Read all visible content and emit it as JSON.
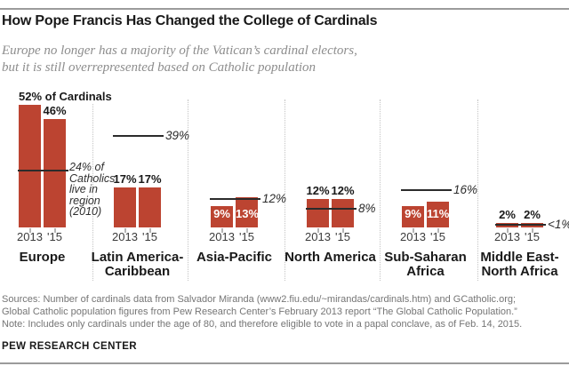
{
  "header": {
    "title": "How Pope Francis Has Changed the College of Cardinals",
    "subtitle_lines": [
      "Europe no longer has a majority of the Vatican’s cardinal electors,",
      "but it is still overrepresented based on Catholic population"
    ]
  },
  "chart_data": {
    "type": "bar",
    "title": "How Pope Francis Has Changed the College of Cardinals",
    "categories": [
      "2013",
      "'15"
    ],
    "ylim": [
      0,
      55
    ],
    "grid": false,
    "legend": "none",
    "colors": {
      "bar": "#bc4431",
      "reference_line": "#2b2b2b"
    },
    "series_note": "bars = % of cardinal electors; line = % of Catholics living in region (2010)",
    "regions": [
      {
        "name_lines": [
          "Europe"
        ],
        "values": [
          52,
          46
        ],
        "bar_labels": [
          "52% of Cardinals",
          "46%"
        ],
        "bar_label_style": "above",
        "first_label_wide": true,
        "population_pct": 24,
        "population_label_lines": [
          "24% of",
          "Catholics",
          "live in",
          "region",
          "(2010)"
        ]
      },
      {
        "name_lines": [
          "Latin America-",
          "Caribbean"
        ],
        "values": [
          17,
          17
        ],
        "bar_labels": [
          "17%",
          "17%"
        ],
        "bar_label_style": "above",
        "population_pct": 39,
        "population_label_lines": [
          "39%"
        ]
      },
      {
        "name_lines": [
          "Asia-Pacific"
        ],
        "values": [
          9,
          13
        ],
        "bar_labels": [
          "9%",
          "13%"
        ],
        "bar_label_style": "inside",
        "population_pct": 12,
        "population_label_lines": [
          "12%"
        ]
      },
      {
        "name_lines": [
          "North America"
        ],
        "values": [
          12,
          12
        ],
        "bar_labels": [
          "12%",
          "12%"
        ],
        "bar_label_style": "above",
        "population_pct": 8,
        "population_label_lines": [
          "8%"
        ]
      },
      {
        "name_lines": [
          "Sub-Saharan",
          "Africa"
        ],
        "values": [
          9,
          11
        ],
        "bar_labels": [
          "9%",
          "11%"
        ],
        "bar_label_style": "inside",
        "population_pct": 16,
        "population_label_lines": [
          "16%"
        ]
      },
      {
        "name_lines": [
          "Middle East-",
          "North Africa"
        ],
        "values": [
          2,
          2
        ],
        "bar_labels": [
          "2%",
          "2%"
        ],
        "bar_label_style": "above",
        "population_pct": 1,
        "population_pct_display": "<1%",
        "population_label_lines": [
          "<1%"
        ]
      }
    ]
  },
  "footer": {
    "source_lines": [
      "Sources: Number of cardinals data from Salvador Miranda (www2.fiu.edu/~mirandas/cardinals.htm) and GCatholic.org;",
      "Global Catholic population figures from Pew Research Center’s February 2013 report “The Global Catholic Population.”",
      "Note: Includes only cardinals under the age of 80, and therefore eligible to vote in a papal conclave, as of Feb. 14, 2015."
    ],
    "brand": "PEW RESEARCH CENTER"
  }
}
